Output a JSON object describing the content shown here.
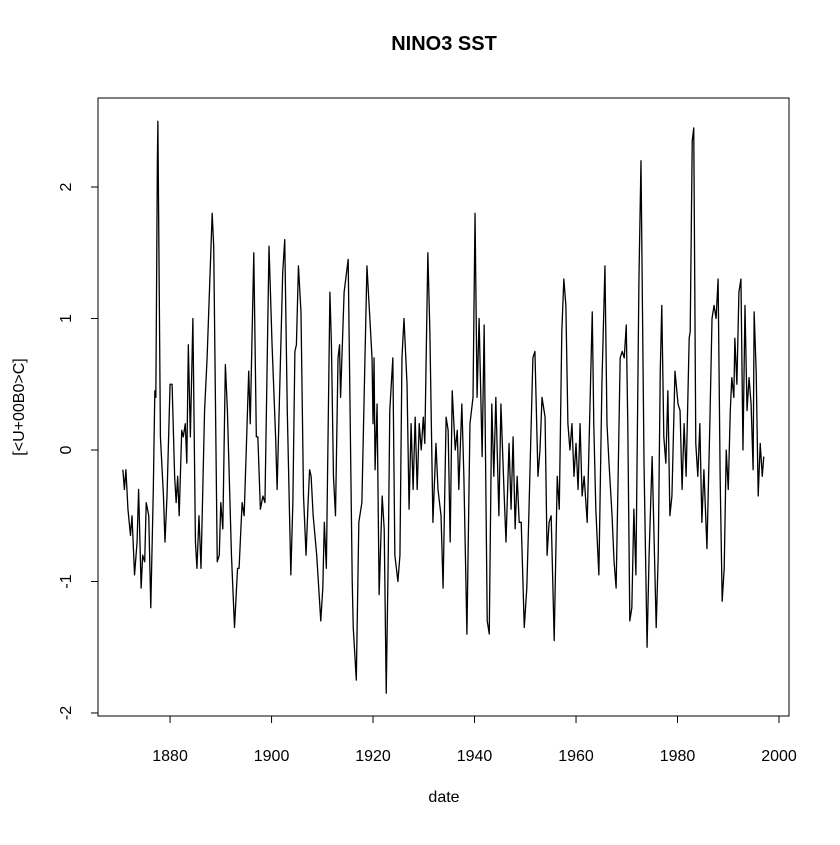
{
  "chart_data": {
    "type": "line",
    "title": "NINO3 SST",
    "x_label": "date",
    "y_label": "[<U+00B0>C]",
    "color": "#000000",
    "xlim": [
      1865.8,
      2001.97
    ],
    "ylim": [
      -2.023,
      2.677
    ],
    "xticks": [
      1880,
      1900,
      1920,
      1940,
      1960,
      1980,
      2000
    ],
    "yticks": [
      -2,
      -1,
      0,
      1,
      2
    ],
    "x": [
      1870.7,
      1871,
      1871.3,
      1871.7,
      1872.2,
      1872.5,
      1873,
      1873.5,
      1873.8,
      1874.3,
      1874.6,
      1875,
      1875.3,
      1875.8,
      1876.2,
      1876.7,
      1877,
      1877.2,
      1877.5,
      1877.6,
      1878.1,
      1878.7,
      1879,
      1879.4,
      1880,
      1880.4,
      1880.9,
      1881.2,
      1881.5,
      1881.8,
      1882.3,
      1882.6,
      1883,
      1883.3,
      1883.6,
      1884,
      1884.5,
      1885,
      1885.3,
      1885.7,
      1886.1,
      1886.8,
      1887.3,
      1888.3,
      1888.6,
      1889.3,
      1889.7,
      1890,
      1890.4,
      1890.9,
      1891.3,
      1892.1,
      1892.7,
      1893.3,
      1893.6,
      1894.2,
      1894.6,
      1895.1,
      1895.5,
      1895.8,
      1896.5,
      1897,
      1897.3,
      1897.8,
      1898.3,
      1898.7,
      1899.5,
      1900.1,
      1900.8,
      1901.1,
      1901.4,
      1902.2,
      1902.6,
      1903.1,
      1903.8,
      1904.2,
      1904.6,
      1904.9,
      1905.3,
      1905.8,
      1906.3,
      1906.8,
      1907.2,
      1907.5,
      1907.8,
      1908.2,
      1908.9,
      1909.7,
      1910.1,
      1910.4,
      1910.8,
      1911.5,
      1911.8,
      1912.2,
      1912.6,
      1913.1,
      1913.4,
      1913.6,
      1914.3,
      1915.1,
      1915.9,
      1916.1,
      1916.7,
      1917.2,
      1917.8,
      1918.8,
      1919.8,
      1920.0,
      1920.2,
      1920.4,
      1920.8,
      1921.2,
      1921.8,
      1922.2,
      1922.6,
      1923.0,
      1923.3,
      1923.9,
      1924.3,
      1924.9,
      1925.3,
      1925.7,
      1926.1,
      1926.7,
      1927.1,
      1927.5,
      1927.9,
      1928.3,
      1928.7,
      1929.1,
      1929.5,
      1929.9,
      1930.2,
      1930.8,
      1931.2,
      1931.8,
      1932.4,
      1932.8,
      1933.4,
      1933.8,
      1934.4,
      1934.8,
      1935.2,
      1935.6,
      1936.2,
      1936.6,
      1936.9,
      1937.5,
      1937.9,
      1938.5,
      1939.1,
      1939.7,
      1940.1,
      1940.5,
      1940.9,
      1941.5,
      1941.9,
      1942.5,
      1942.9,
      1943.4,
      1943.8,
      1944.2,
      1944.8,
      1945.2,
      1945.8,
      1946.2,
      1946.8,
      1947.2,
      1947.6,
      1948.0,
      1948.4,
      1948.8,
      1949.2,
      1949.8,
      1950.3,
      1950.7,
      1951.5,
      1951.9,
      1952.5,
      1952.9,
      1953.3,
      1953.9,
      1954.3,
      1954.7,
      1955.1,
      1955.7,
      1956.3,
      1956.7,
      1957.2,
      1957.6,
      1958.0,
      1958.4,
      1958.8,
      1959.2,
      1959.6,
      1960.0,
      1960.4,
      1960.8,
      1961.2,
      1961.6,
      1962.2,
      1962.6,
      1963.2,
      1963.5,
      1963.9,
      1964.5,
      1965.1,
      1965.7,
      1966.1,
      1966.5,
      1967.1,
      1967.5,
      1967.9,
      1968.3,
      1968.7,
      1969.1,
      1969.5,
      1969.9,
      1970.2,
      1970.6,
      1971.0,
      1971.4,
      1971.8,
      1972.4,
      1972.8,
      1973.4,
      1974.0,
      1974.4,
      1974.8,
      1975.0,
      1975.4,
      1975.8,
      1976.2,
      1976.6,
      1976.9,
      1977.3,
      1977.7,
      1978.1,
      1978.5,
      1978.9,
      1979.5,
      1980.1,
      1980.5,
      1980.9,
      1981.3,
      1981.7,
      1982.3,
      1982.5,
      1982.9,
      1983.2,
      1983.6,
      1984.0,
      1984.4,
      1984.8,
      1985.2,
      1985.8,
      1986.4,
      1986.8,
      1987.2,
      1987.6,
      1988.0,
      1988.4,
      1988.8,
      1989.2,
      1989.6,
      1990.0,
      1990.4,
      1990.7,
      1991.1,
      1991.3,
      1991.7,
      1992.1,
      1992.5,
      1992.9,
      1993.3,
      1993.7,
      1994.1,
      1994.5,
      1994.9,
      1995.1,
      1995.5,
      1995.9,
      1996.3,
      1996.7,
      1997.0
    ],
    "values": [
      -0.15,
      -0.3,
      -0.15,
      -0.45,
      -0.65,
      -0.5,
      -0.95,
      -0.7,
      -0.3,
      -1.05,
      -0.8,
      -0.85,
      -0.4,
      -0.5,
      -1.2,
      -0.3,
      0.45,
      0.4,
      2.2,
      2.5,
      0.1,
      -0.35,
      -0.7,
      -0.35,
      0.5,
      0.5,
      -0.2,
      -0.4,
      -0.2,
      -0.5,
      0.15,
      0.1,
      0.2,
      -0.1,
      0.8,
      0.1,
      1.0,
      -0.7,
      -0.9,
      -0.5,
      -0.9,
      0.3,
      0.7,
      1.8,
      1.55,
      -0.85,
      -0.8,
      -0.4,
      -0.6,
      0.65,
      0.3,
      -0.8,
      -1.35,
      -0.9,
      -0.9,
      -0.4,
      -0.5,
      0.1,
      0.6,
      0.2,
      1.5,
      0.1,
      0.1,
      -0.45,
      -0.35,
      -0.4,
      1.55,
      0.8,
      0.1,
      -0.3,
      0.15,
      1.35,
      1.6,
      0.3,
      -0.95,
      -0.4,
      0.75,
      0.8,
      1.4,
      1.05,
      -0.35,
      -0.8,
      -0.4,
      -0.15,
      -0.2,
      -0.5,
      -0.8,
      -1.3,
      -1.05,
      -0.55,
      -0.9,
      1.2,
      0.8,
      -0.2,
      -0.5,
      0.7,
      0.8,
      0.4,
      1.2,
      1.45,
      -1.0,
      -1.35,
      -1.75,
      -0.55,
      -0.4,
      1.4,
      0.7,
      0.2,
      0.7,
      -0.15,
      0.35,
      -1.1,
      -0.35,
      -0.6,
      -1.85,
      -0.8,
      0.3,
      0.7,
      -0.8,
      -1.0,
      -0.8,
      0.7,
      1.0,
      0.5,
      -0.45,
      0.2,
      -0.3,
      0.25,
      -0.3,
      0.2,
      0.0,
      0.25,
      0.05,
      1.5,
      0.9,
      -0.55,
      0.05,
      -0.3,
      -0.5,
      -1.05,
      0.25,
      0.15,
      -0.7,
      0.45,
      0.0,
      0.15,
      -0.3,
      0.35,
      -0.2,
      -1.4,
      0.2,
      0.4,
      1.8,
      0.4,
      1.0,
      -0.05,
      0.95,
      -1.3,
      -1.4,
      0.35,
      -0.2,
      0.4,
      -0.5,
      0.35,
      -0.3,
      -0.7,
      0.05,
      -0.45,
      0.1,
      -0.6,
      -0.2,
      -0.55,
      -0.55,
      -1.35,
      -1.05,
      -0.5,
      0.7,
      0.75,
      -0.2,
      0.0,
      0.4,
      0.25,
      -0.8,
      -0.55,
      -0.5,
      -1.45,
      -0.2,
      -0.45,
      0.9,
      1.3,
      1.1,
      0.2,
      0.0,
      0.2,
      -0.2,
      0.05,
      -0.3,
      0.2,
      -0.35,
      -0.2,
      -0.55,
      0.1,
      1.05,
      0.2,
      -0.45,
      -0.95,
      0.5,
      1.4,
      0.2,
      -0.1,
      -0.5,
      -0.85,
      -1.05,
      -0.2,
      0.7,
      0.75,
      0.7,
      0.95,
      0.2,
      -1.3,
      -1.2,
      -0.45,
      -0.95,
      1.3,
      2.2,
      -0.1,
      -1.5,
      -0.8,
      -0.3,
      -0.05,
      -0.7,
      -1.35,
      -0.8,
      0.6,
      1.1,
      0.1,
      -0.1,
      0.45,
      -0.5,
      -0.35,
      0.6,
      0.35,
      0.3,
      -0.3,
      0.2,
      -0.2,
      0.85,
      0.9,
      2.35,
      2.45,
      0.05,
      -0.2,
      0.2,
      -0.55,
      -0.15,
      -0.75,
      0.25,
      1.0,
      1.1,
      1.0,
      1.3,
      -0.2,
      -1.15,
      -0.9,
      0.0,
      -0.3,
      0.3,
      0.55,
      0.4,
      0.85,
      0.5,
      1.2,
      1.3,
      0.0,
      1.1,
      0.3,
      0.55,
      0.35,
      -0.15,
      1.05,
      0.6,
      -0.35,
      0.05,
      -0.2,
      -0.05
    ]
  }
}
